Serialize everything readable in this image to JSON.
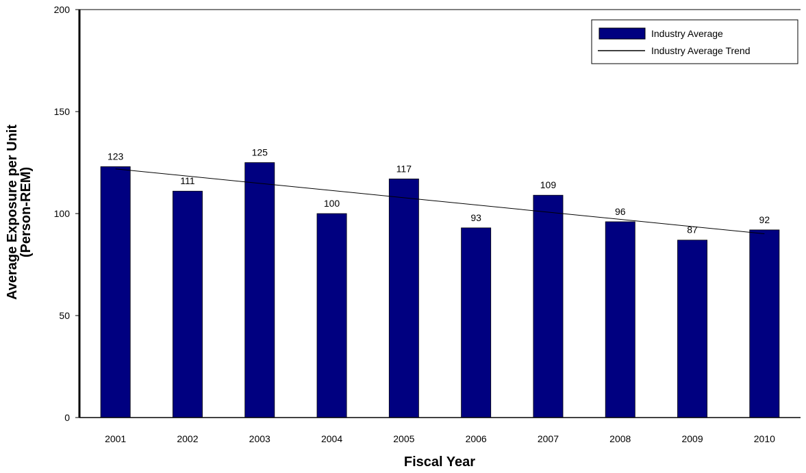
{
  "chart_data": {
    "type": "bar",
    "title": "",
    "xlabel": "Fiscal Year",
    "ylabel_lines": [
      "Average Exposure per Unit",
      "(Person-REM)"
    ],
    "categories": [
      "2001",
      "2002",
      "2003",
      "2004",
      "2005",
      "2006",
      "2007",
      "2008",
      "2009",
      "2010"
    ],
    "series": [
      {
        "name": "Industry Average",
        "type": "bar",
        "values": [
          123,
          111,
          125,
          100,
          117,
          93,
          109,
          96,
          87,
          92
        ],
        "data_labels": [
          "123",
          "111",
          "125",
          "100",
          "117",
          "93",
          "109",
          "96",
          "87",
          "92"
        ],
        "color": "#000080"
      },
      {
        "name": "Industry Average Trend",
        "type": "line",
        "start_value": 121.9,
        "end_value": 90.1,
        "color": "#000000"
      }
    ],
    "ylim": [
      0,
      200
    ],
    "y_ticks": [
      0,
      50,
      100,
      150,
      200
    ],
    "y_tick_labels": [
      "0",
      "50",
      "100",
      "150",
      "200"
    ],
    "grid": false,
    "legend_position": "top-right"
  }
}
